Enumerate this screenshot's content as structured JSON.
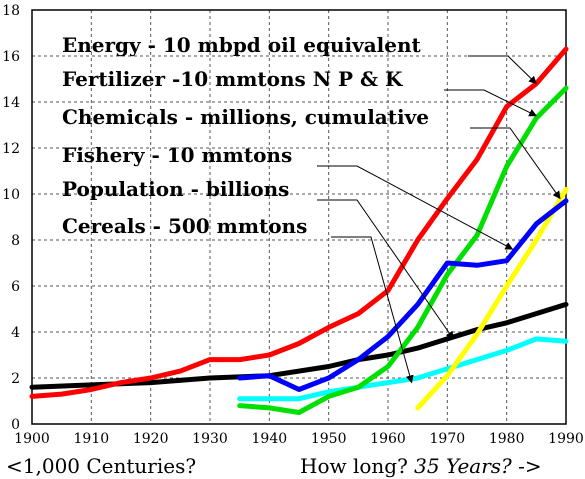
{
  "chart_data": {
    "type": "line",
    "title": "",
    "xlabel": "",
    "ylabel": "",
    "xlim": [
      1900,
      1990
    ],
    "ylim": [
      0,
      18
    ],
    "x_ticks": [
      "1900",
      "1910",
      "1920",
      "1930",
      "1940",
      "1950",
      "1960",
      "1970",
      "1980",
      "1990"
    ],
    "y_ticks": [
      "0",
      "2",
      "4",
      "6",
      "8",
      "10",
      "12",
      "14",
      "16",
      "18"
    ],
    "grid": "dashed vertical and horizontal",
    "series": [
      {
        "name": "Energy - 10 mbpd oil equivalent",
        "color": "#ff0000",
        "points": [
          [
            1900,
            1.2
          ],
          [
            1905,
            1.3
          ],
          [
            1910,
            1.5
          ],
          [
            1915,
            1.8
          ],
          [
            1920,
            2.0
          ],
          [
            1925,
            2.3
          ],
          [
            1930,
            2.8
          ],
          [
            1935,
            2.8
          ],
          [
            1940,
            3.0
          ],
          [
            1945,
            3.5
          ],
          [
            1950,
            4.2
          ],
          [
            1955,
            4.8
          ],
          [
            1960,
            5.8
          ],
          [
            1965,
            8.0
          ],
          [
            1970,
            9.8
          ],
          [
            1975,
            11.5
          ],
          [
            1980,
            13.8
          ],
          [
            1985,
            14.8
          ],
          [
            1990,
            16.3
          ]
        ]
      },
      {
        "name": "Fertilizer -10 mmtons N P & K",
        "color": "#00e000",
        "points": [
          [
            1935,
            0.8
          ],
          [
            1940,
            0.7
          ],
          [
            1945,
            0.5
          ],
          [
            1950,
            1.2
          ],
          [
            1955,
            1.6
          ],
          [
            1960,
            2.5
          ],
          [
            1965,
            4.2
          ],
          [
            1970,
            6.5
          ],
          [
            1975,
            8.2
          ],
          [
            1980,
            11.2
          ],
          [
            1985,
            13.3
          ],
          [
            1990,
            14.6
          ]
        ]
      },
      {
        "name": "Chemicals - millions, cumulative",
        "color": "#ffff00",
        "points": [
          [
            1965,
            0.7
          ],
          [
            1970,
            2.1
          ],
          [
            1975,
            3.9
          ],
          [
            1980,
            6.0
          ],
          [
            1985,
            8.0
          ],
          [
            1990,
            10.2
          ]
        ]
      },
      {
        "name": "Fishery - 10 mmtons",
        "color": "#00ffff",
        "points": [
          [
            1935,
            1.1
          ],
          [
            1940,
            1.1
          ],
          [
            1945,
            1.1
          ],
          [
            1950,
            1.4
          ],
          [
            1955,
            1.6
          ],
          [
            1960,
            1.8
          ],
          [
            1965,
            2.0
          ],
          [
            1970,
            2.4
          ],
          [
            1975,
            2.8
          ],
          [
            1980,
            3.2
          ],
          [
            1985,
            3.7
          ],
          [
            1990,
            3.6
          ]
        ]
      },
      {
        "name": "Population - billions",
        "color": "#000000",
        "points": [
          [
            1900,
            1.6
          ],
          [
            1910,
            1.7
          ],
          [
            1920,
            1.8
          ],
          [
            1930,
            2.0
          ],
          [
            1940,
            2.1
          ],
          [
            1950,
            2.5
          ],
          [
            1955,
            2.8
          ],
          [
            1960,
            3.0
          ],
          [
            1965,
            3.3
          ],
          [
            1970,
            3.7
          ],
          [
            1975,
            4.1
          ],
          [
            1980,
            4.4
          ],
          [
            1985,
            4.8
          ],
          [
            1990,
            5.2
          ]
        ]
      },
      {
        "name": "Cereals - 500 mmtons",
        "color": "#0000ff",
        "points": [
          [
            1935,
            2.0
          ],
          [
            1940,
            2.1
          ],
          [
            1945,
            1.5
          ],
          [
            1950,
            2.0
          ],
          [
            1955,
            2.8
          ],
          [
            1960,
            3.8
          ],
          [
            1965,
            5.2
          ],
          [
            1970,
            7.0
          ],
          [
            1975,
            6.9
          ],
          [
            1980,
            7.1
          ],
          [
            1985,
            8.7
          ],
          [
            1990,
            9.7
          ]
        ]
      }
    ],
    "annotations": [
      {
        "series": "Energy - 10 mbpd oil equivalent",
        "points_to": [
          1985,
          14.8
        ]
      },
      {
        "series": "Fertilizer -10 mmtons N P & K",
        "points_to": [
          1985,
          13.4
        ]
      },
      {
        "series": "Chemicals - millions, cumulative",
        "points_to": [
          1989,
          9.8
        ]
      },
      {
        "series": "Fishery - 10 mmtons",
        "points_to": [
          1981,
          7.6
        ]
      },
      {
        "series": "Population - billions",
        "points_to": [
          1971,
          3.7
        ]
      },
      {
        "series": "Cereals - 500 mmtons",
        "points_to": [
          1964,
          1.8
        ]
      }
    ]
  },
  "footer": {
    "left": "<1,000 Centuries?",
    "right_plain": "How long? ",
    "right_italic": "35 Years?",
    "right_arrow": " ->"
  }
}
